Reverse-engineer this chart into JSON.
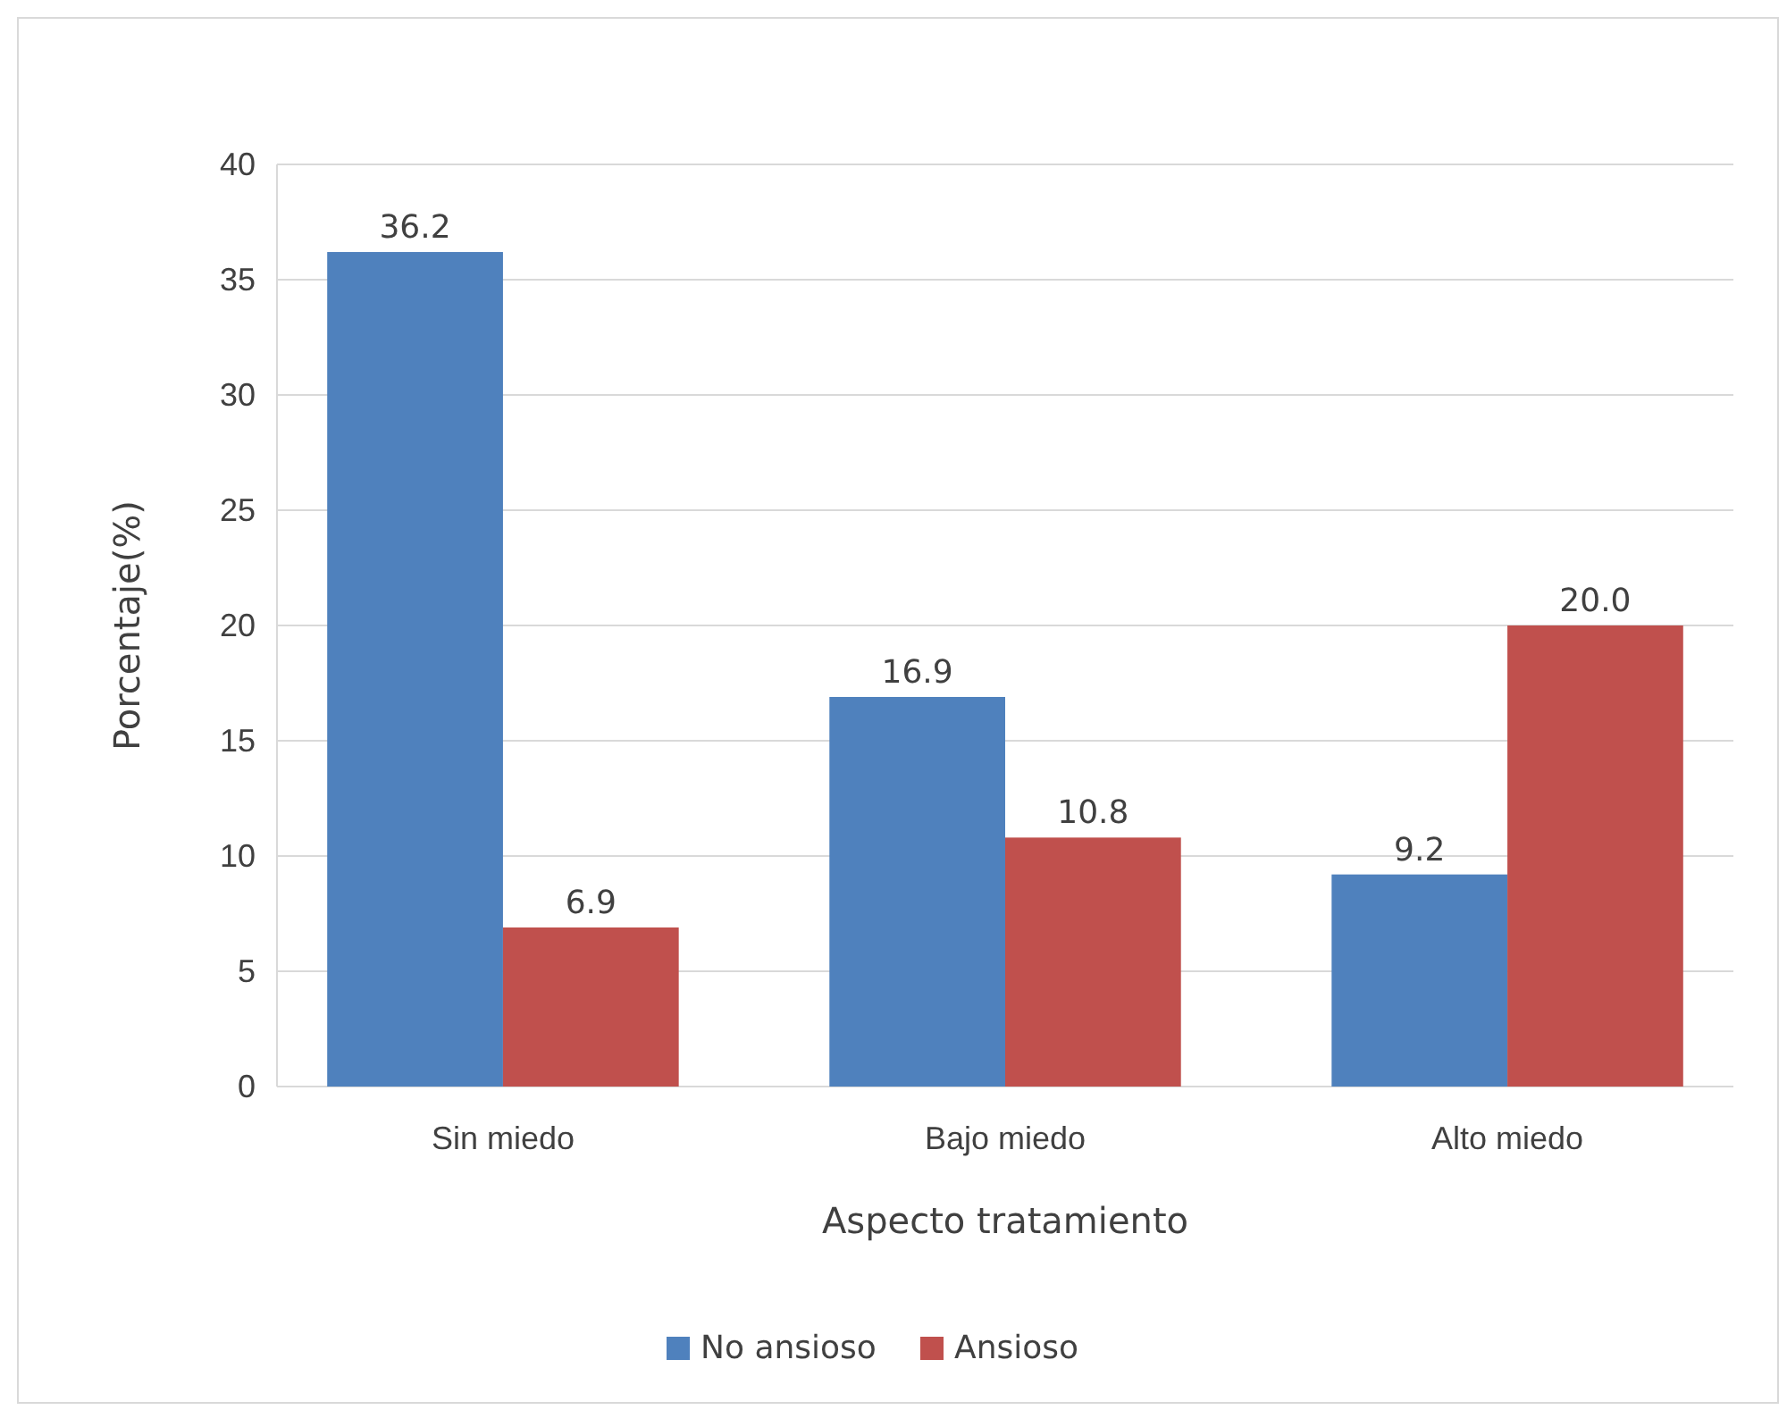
{
  "chart_data": {
    "type": "bar",
    "xlabel": "Aspecto tratamiento",
    "ylabel": "Porcentaje(%)",
    "categories": [
      "Sin miedo",
      "Bajo miedo",
      "Alto miedo"
    ],
    "series": [
      {
        "name": "No ansioso",
        "color": "#4f81bd",
        "values": [
          36.2,
          16.9,
          9.2
        ],
        "value_labels": [
          "36.2",
          "16.9",
          "9.2"
        ]
      },
      {
        "name": "Ansioso",
        "color": "#c0504d",
        "values": [
          6.9,
          10.8,
          20.0
        ],
        "value_labels": [
          "6.9",
          "10.8",
          "20.0"
        ]
      }
    ],
    "ylim": [
      0,
      40
    ],
    "yticks": [
      0,
      5,
      10,
      15,
      20,
      25,
      30,
      35,
      40
    ],
    "grid": "y",
    "legend": "bottom"
  }
}
